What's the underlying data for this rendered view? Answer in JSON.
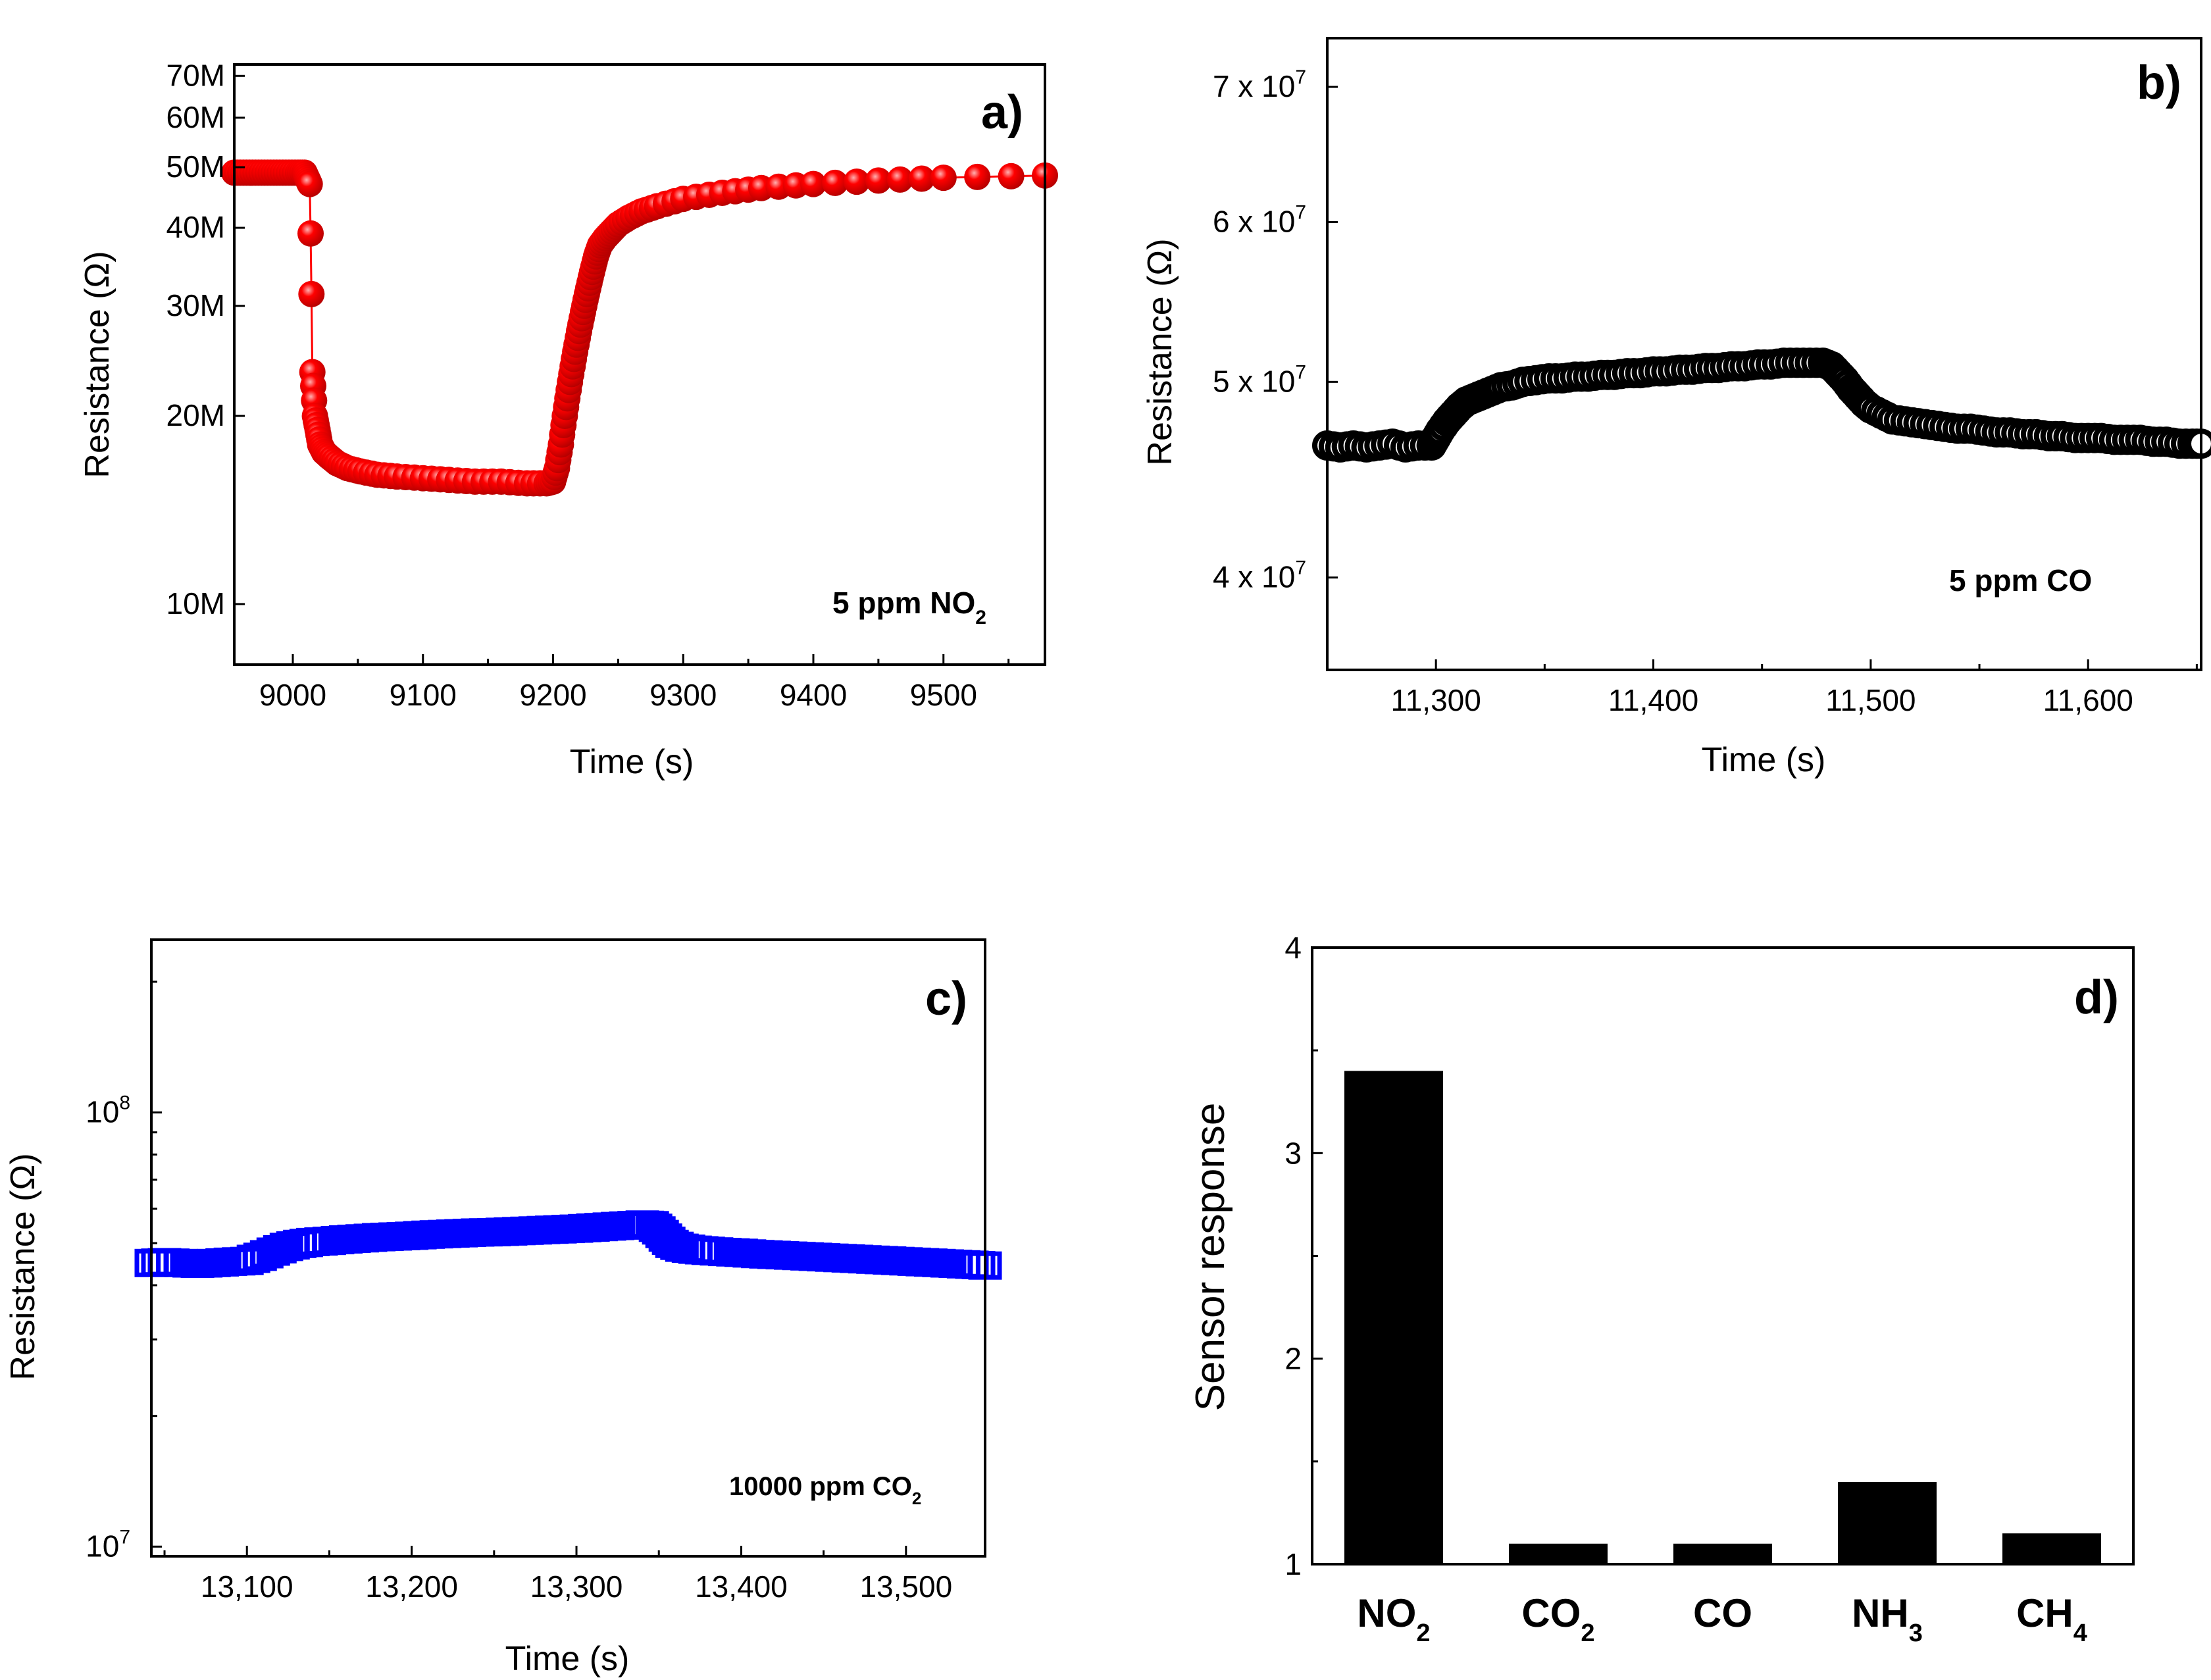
{
  "colors": {
    "a": "#ff0000",
    "b": "#000000",
    "c": "#0000ff",
    "d": "#000000"
  },
  "chart_data": [
    {
      "id": "a",
      "type": "scatter",
      "panel_label": "a)",
      "annotation": {
        "text": "5 ppm NO",
        "sub": "2"
      },
      "xlabel": "Time (s)",
      "ylabel": "Resistance (Ω)",
      "yscale": "log",
      "xlim": [
        8955,
        9578
      ],
      "ylim": [
        8000000,
        73000000
      ],
      "xticks": [
        9000,
        9100,
        9200,
        9300,
        9400,
        9500
      ],
      "xtick_labels": [
        "9000",
        "9100",
        "9200",
        "9300",
        "9400",
        "9500"
      ],
      "yticks": [
        10000000,
        20000000,
        30000000,
        40000000,
        50000000,
        60000000,
        70000000
      ],
      "ytick_labels": [
        "10M",
        "20M",
        "30M",
        "40M",
        "50M",
        "60M",
        "70M"
      ],
      "series": [
        {
          "name": "5 ppm NO2",
          "marker": "sphere",
          "x": [
            8955,
            8962,
            8969,
            8976,
            8983,
            8990,
            8997,
            9004,
            9009,
            9011,
            9013,
            9015,
            9017,
            9019,
            9021,
            9024,
            9028,
            9034,
            9042,
            9052,
            9065,
            9080,
            9100,
            9120,
            9140,
            9160,
            9180,
            9195,
            9200,
            9203,
            9206,
            9209,
            9212,
            9215,
            9218,
            9221,
            9224,
            9227,
            9230,
            9233,
            9236,
            9240,
            9245,
            9250,
            9258,
            9268,
            9280,
            9300,
            9330,
            9360,
            9400,
            9450,
            9500,
            9578
          ],
          "y": [
            49000000,
            49000000,
            49000000,
            49000000,
            49000000,
            49000000,
            49000000,
            49000000,
            49000000,
            48000000,
            47000000,
            23500000,
            20000000,
            19000000,
            18000000,
            17500000,
            17200000,
            16800000,
            16500000,
            16300000,
            16100000,
            16000000,
            15900000,
            15800000,
            15700000,
            15700000,
            15600000,
            15600000,
            15700000,
            16500000,
            18000000,
            20000000,
            22000000,
            24000000,
            26000000,
            28000000,
            30000000,
            32000000,
            34000000,
            36000000,
            37500000,
            38500000,
            39500000,
            40500000,
            41500000,
            42500000,
            43300000,
            44500000,
            45500000,
            46300000,
            47000000,
            47600000,
            48100000,
            48500000
          ]
        }
      ]
    },
    {
      "id": "b",
      "type": "scatter",
      "panel_label": "b)",
      "annotation": {
        "text": "5 ppm CO",
        "sub": ""
      },
      "xlabel": "Time (s)",
      "ylabel": "Resistance (Ω)",
      "yscale": "log",
      "xlim": [
        11250,
        11652
      ],
      "ylim": [
        36000000,
        74000000
      ],
      "xticks": [
        11300,
        11400,
        11500,
        11600
      ],
      "xtick_labels": [
        "11,300",
        "11,400",
        "11,500",
        "11,600"
      ],
      "yticks": [
        40000000,
        50000000,
        60000000,
        70000000
      ],
      "ytick_labels": [
        {
          "m": "4 x 10",
          "e": "7"
        },
        {
          "m": "5 x 10",
          "e": "7"
        },
        {
          "m": "6 x 10",
          "e": "7"
        },
        {
          "m": "7 x 10",
          "e": "7"
        }
      ],
      "series": [
        {
          "name": "5 ppm CO",
          "marker": "open-circle",
          "x": [
            11250,
            11256,
            11262,
            11268,
            11274,
            11280,
            11286,
            11292,
            11298,
            11300,
            11302,
            11305,
            11308,
            11311,
            11314,
            11318,
            11322,
            11326,
            11330,
            11335,
            11340,
            11346,
            11352,
            11358,
            11364,
            11370,
            11376,
            11382,
            11388,
            11394,
            11400,
            11406,
            11412,
            11418,
            11424,
            11430,
            11436,
            11442,
            11448,
            11454,
            11460,
            11466,
            11472,
            11478,
            11482,
            11485,
            11488,
            11491,
            11494,
            11497,
            11500,
            11505,
            11510,
            11516,
            11522,
            11528,
            11534,
            11540,
            11546,
            11552,
            11558,
            11564,
            11570,
            11576,
            11582,
            11588,
            11594,
            11600,
            11606,
            11612,
            11618,
            11624,
            11630,
            11636,
            11642,
            11648,
            11652
          ],
          "y": [
            46500000,
            46400000,
            46500000,
            46400000,
            46500000,
            46600000,
            46400000,
            46500000,
            46500000,
            46900000,
            47300000,
            47800000,
            48200000,
            48600000,
            48900000,
            49100000,
            49300000,
            49500000,
            49700000,
            49800000,
            50000000,
            50100000,
            50200000,
            50200000,
            50300000,
            50300000,
            50400000,
            50400000,
            50500000,
            50500000,
            50600000,
            50600000,
            50700000,
            50700000,
            50800000,
            50800000,
            50900000,
            50900000,
            51000000,
            51000000,
            51100000,
            51100000,
            51100000,
            51100000,
            50900000,
            50500000,
            50100000,
            49600000,
            49200000,
            48800000,
            48500000,
            48200000,
            47900000,
            47800000,
            47700000,
            47600000,
            47500000,
            47400000,
            47400000,
            47300000,
            47200000,
            47200000,
            47100000,
            47100000,
            47000000,
            47000000,
            46900000,
            46900000,
            46900000,
            46800000,
            46800000,
            46800000,
            46700000,
            46700000,
            46600000,
            46600000,
            46600000
          ]
        }
      ]
    },
    {
      "id": "c",
      "type": "scatter",
      "panel_label": "c)",
      "annotation": {
        "text": "10000 ppm CO",
        "sub": "2"
      },
      "xlabel": "Time (s)",
      "ylabel": "Resistance (Ω)",
      "yscale": "log",
      "xlim": [
        13042,
        13548
      ],
      "ylim": [
        9500000,
        250000000
      ],
      "xticks": [
        13100,
        13200,
        13300,
        13400,
        13500
      ],
      "xtick_labels": [
        "13,100",
        "13,200",
        "13,300",
        "13,400",
        "13,500"
      ],
      "yticks": [
        10000000,
        100000000
      ],
      "ytick_labels": [
        {
          "m": "10",
          "e": "7"
        },
        {
          "m": "10",
          "e": "8"
        }
      ],
      "series": [
        {
          "name": "10000 ppm CO2",
          "marker": "open-square",
          "x": [
            13042,
            13050,
            13060,
            13070,
            13080,
            13090,
            13100,
            13108,
            13116,
            13124,
            13132,
            13140,
            13150,
            13160,
            13170,
            13180,
            13190,
            13200,
            13210,
            13220,
            13230,
            13240,
            13250,
            13260,
            13270,
            13280,
            13290,
            13300,
            13310,
            13320,
            13330,
            13340,
            13346,
            13350,
            13354,
            13358,
            13364,
            13372,
            13380,
            13390,
            13400,
            13410,
            13420,
            13430,
            13440,
            13450,
            13460,
            13470,
            13480,
            13490,
            13500,
            13510,
            13520,
            13530,
            13540,
            13548
          ],
          "y": [
            45000000,
            45200000,
            45000000,
            44800000,
            45000000,
            45300000,
            45500000,
            46500000,
            47800000,
            49000000,
            49800000,
            50300000,
            50600000,
            51000000,
            51300000,
            51600000,
            51800000,
            52000000,
            52300000,
            52500000,
            52700000,
            52900000,
            53000000,
            53200000,
            53400000,
            53600000,
            53800000,
            54000000,
            54300000,
            54600000,
            54900000,
            55200000,
            55000000,
            53500000,
            51500000,
            49800000,
            48800000,
            48300000,
            48000000,
            47700000,
            47500000,
            47200000,
            47000000,
            46800000,
            46600000,
            46400000,
            46200000,
            46000000,
            45800000,
            45600000,
            45400000,
            45200000,
            45000000,
            44800000,
            44600000,
            44400000
          ]
        }
      ]
    },
    {
      "id": "d",
      "type": "bar",
      "panel_label": "d)",
      "ylabel": "Sensor response",
      "xlabel": "",
      "ylim": [
        1,
        4
      ],
      "yticks": [
        1,
        2,
        3,
        4
      ],
      "ytick_labels": [
        "1",
        "2",
        "3",
        "4"
      ],
      "categories": [
        {
          "label": "NO",
          "sub": "2"
        },
        {
          "label": "CO",
          "sub": "2"
        },
        {
          "label": "CO",
          "sub": ""
        },
        {
          "label": "NH",
          "sub": "3"
        },
        {
          "label": "CH",
          "sub": "4"
        }
      ],
      "values": [
        3.4,
        1.1,
        1.1,
        1.4,
        1.15
      ]
    }
  ]
}
